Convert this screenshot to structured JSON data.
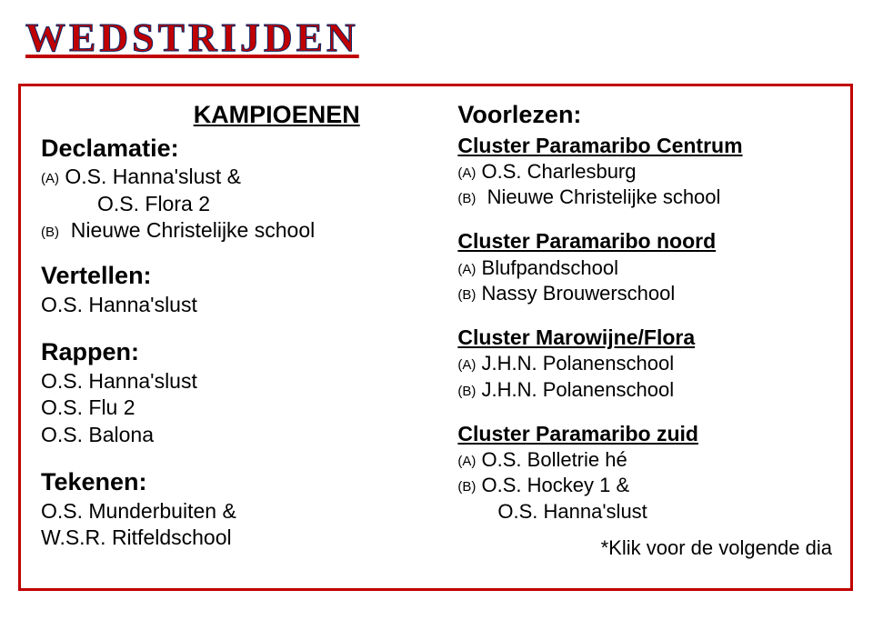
{
  "title": "WEDSTRIJDEN",
  "left": {
    "kampioenen": "KAMPIOENEN",
    "declamatie": {
      "label": "Declamatie:",
      "a_marker": "(A)",
      "a1": "O.S. Hanna'slust &",
      "a2": "O.S. Flora 2",
      "b_marker": "(B)",
      "b1": "Nieuwe Christelijke school"
    },
    "vertellen": {
      "label": "Vertellen:",
      "l1": "O.S. Hanna'slust"
    },
    "rappen": {
      "label": "Rappen:",
      "l1": "O.S. Hanna'slust",
      "l2": "O.S. Flu 2",
      "l3": "O.S. Balona"
    },
    "tekenen": {
      "label": "Tekenen:",
      "l1": "O.S. Munderbuiten &",
      "l2": "W.S.R. Ritfeldschool"
    }
  },
  "right": {
    "voorlezen": "Voorlezen:",
    "c1": {
      "h": "Cluster Paramaribo Centrum",
      "am": "(A)",
      "a": "O.S. Charlesburg",
      "bm": "(B)",
      "b": "Nieuwe Christelijke school"
    },
    "c2": {
      "h": "Cluster Paramaribo noord",
      "am": "(A)",
      "a": "Blufpandschool",
      "bm": "(B)",
      "b": "Nassy Brouwerschool"
    },
    "c3": {
      "h": "Cluster Marowijne/Flora",
      "am": "(A)",
      "a": "J.H.N. Polanenschool",
      "bm": "(B)",
      "b": "J.H.N. Polanenschool"
    },
    "c4": {
      "h": "Cluster Paramaribo zuid",
      "am": "(A)",
      "a": "O.S. Bolletrie hé",
      "bm": "(B)",
      "b": "O.S. Hockey 1 &",
      "b2": "O.S. Hanna'slust"
    },
    "footer": "*Klik voor de volgende dia"
  },
  "colors": {
    "title_fill": "#c00000",
    "title_stroke": "#0a2a6a",
    "border": "#c00000",
    "text": "#000000",
    "bg": "#ffffff"
  }
}
